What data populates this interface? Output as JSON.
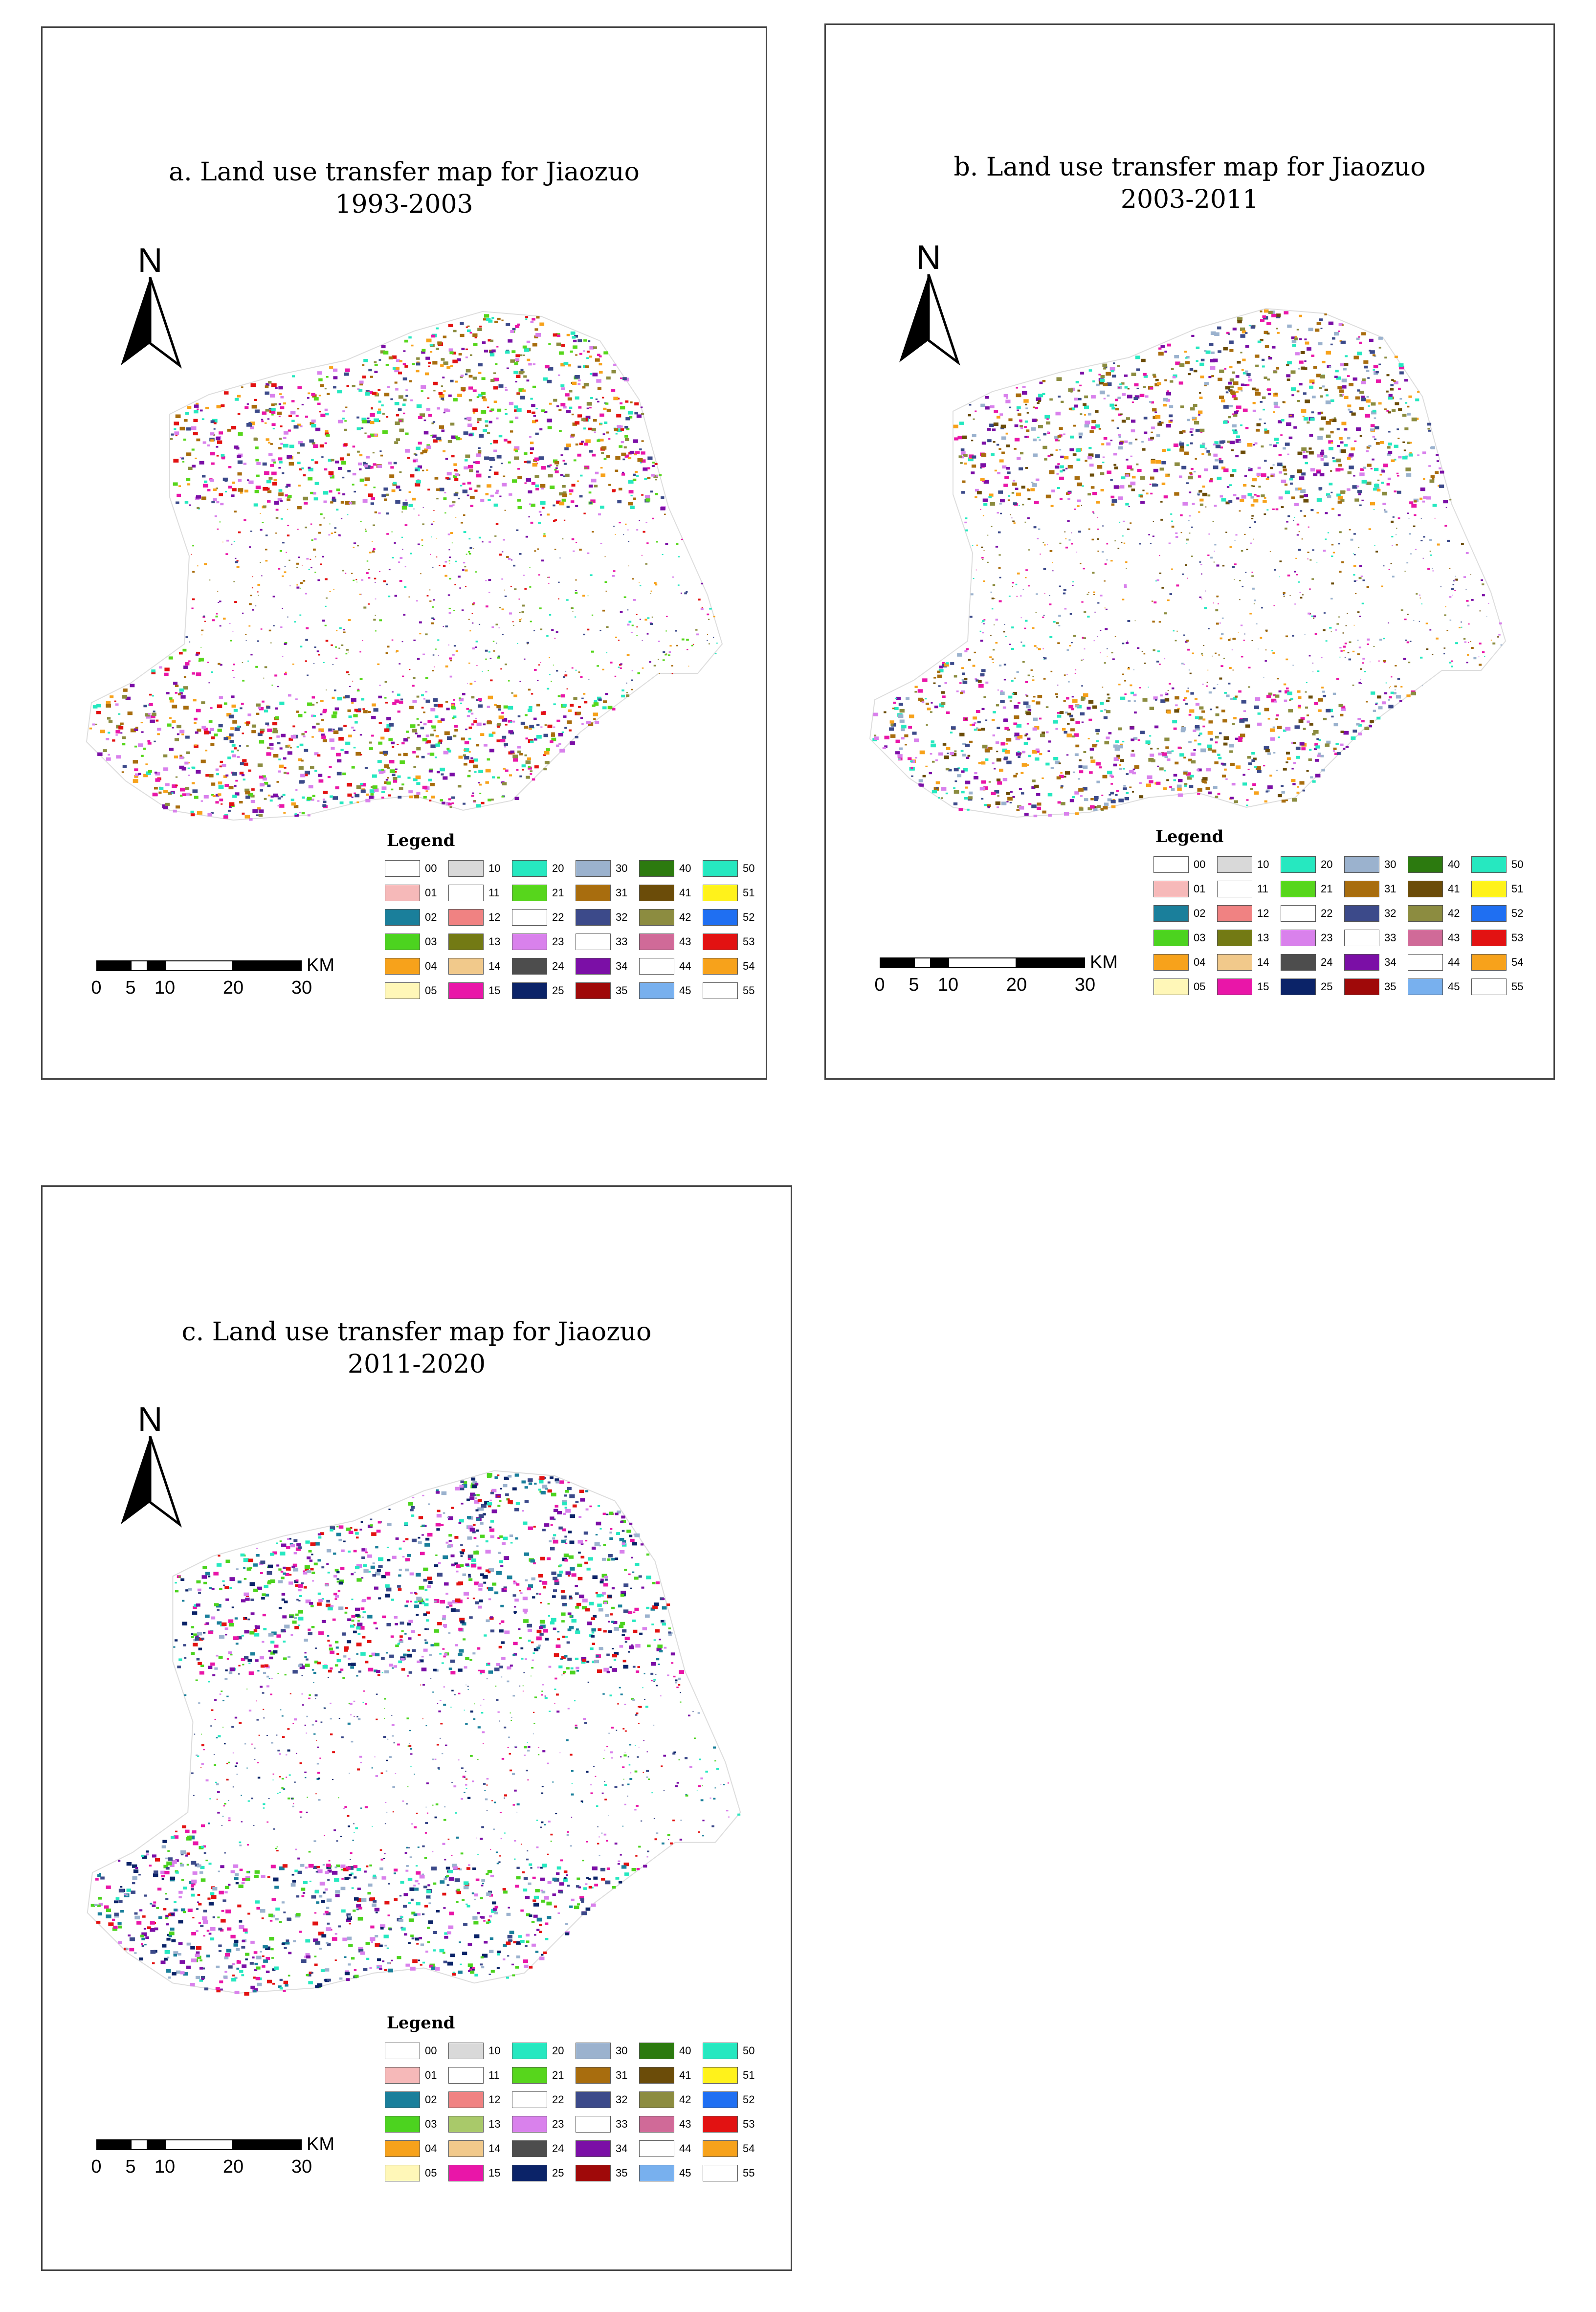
{
  "panels": [
    {
      "id": "a",
      "title": "a. Land use transfer map for Jiaozuo\n1993-2003"
    },
    {
      "id": "b",
      "title": "b. Land use transfer map for Jiaozuo\n2003-2011"
    },
    {
      "id": "c",
      "title": "c. Land use transfer map for Jiaozuo\n2011-2020"
    }
  ],
  "north_label": "N",
  "scale_bar": {
    "ticks": [
      "0",
      "5",
      "10",
      "20",
      "30"
    ],
    "unit": "KM"
  },
  "legend": {
    "title": "Legend",
    "codes": [
      "00",
      "01",
      "02",
      "03",
      "04",
      "05",
      "10",
      "11",
      "12",
      "13",
      "14",
      "15",
      "20",
      "21",
      "22",
      "23",
      "24",
      "25",
      "30",
      "31",
      "32",
      "33",
      "34",
      "35",
      "40",
      "41",
      "42",
      "43",
      "44",
      "45",
      "50",
      "51",
      "52",
      "53",
      "54",
      "55"
    ],
    "colors_a": [
      "#ffffff",
      "#f6b9b9",
      "#1a7f9b",
      "#4cd31f",
      "#f7a21b",
      "#fff7b8",
      "#d9d9d9",
      "#ffffff",
      "#f08282",
      "#737a14",
      "#f1c98b",
      "#e916a8",
      "#26e8c0",
      "#57d61c",
      "#ffffff",
      "#d981ec",
      "#4d4d4d",
      "#0b2368",
      "#9bb2ce",
      "#a86d0e",
      "#3c4a8a",
      "#ffffff",
      "#7b0fa6",
      "#9f0909",
      "#2c7a0f",
      "#6b4c09",
      "#8c8c40",
      "#d06a98",
      "#ffffff",
      "#78b0ee",
      "#26e8c0",
      "#fff21b",
      "#1f6ff2",
      "#e21212",
      "#f7a21b",
      "#ffffff"
    ],
    "colors_c": [
      "#ffffff",
      "#f6b9b9",
      "#1a7f9b",
      "#4cd31f",
      "#f7a21b",
      "#fff7b8",
      "#d9d9d9",
      "#ffffff",
      "#f08282",
      "#a9c96a",
      "#f1c98b",
      "#e916a8",
      "#26e8c0",
      "#57d61c",
      "#ffffff",
      "#d981ec",
      "#4d4d4d",
      "#0b2368",
      "#9bb2ce",
      "#a86d0e",
      "#3c4a8a",
      "#ffffff",
      "#7b0fa6",
      "#9f0909",
      "#2c7a0f",
      "#6b4c09",
      "#8c8c40",
      "#d06a98",
      "#ffffff",
      "#78b0ee",
      "#26e8c0",
      "#fff21b",
      "#1f6ff2",
      "#e21212",
      "#f7a21b",
      "#ffffff"
    ]
  },
  "map_palettes": {
    "a": [
      "#f7a21b",
      "#e21212",
      "#7b0fa6",
      "#d981ec",
      "#a86d0e",
      "#57d61c",
      "#26e8c0",
      "#8c8c40",
      "#3c4a8a",
      "#e916a8"
    ],
    "b": [
      "#8c8c40",
      "#a86d0e",
      "#3c4a8a",
      "#7b0fa6",
      "#26e8c0",
      "#9bb2ce",
      "#e916a8",
      "#6b4c09",
      "#f7a21b",
      "#d981ec"
    ],
    "c": [
      "#26e8c0",
      "#3c4a8a",
      "#7b0fa6",
      "#e916a8",
      "#4cd31f",
      "#1a7f9b",
      "#9bb2ce",
      "#d981ec",
      "#0b2368",
      "#e21212"
    ]
  }
}
